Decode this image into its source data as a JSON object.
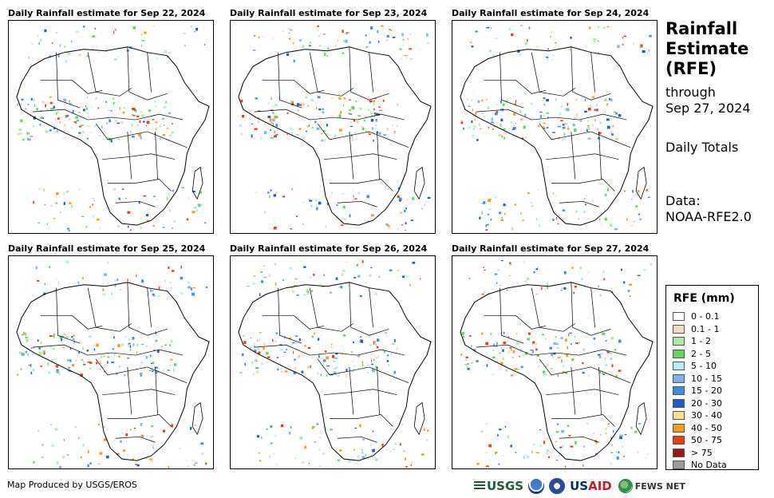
{
  "panels": [
    {
      "title": "Daily Rainfall estimate for Sep 22, 2024"
    },
    {
      "title": "Daily Rainfall estimate for Sep 23, 2024"
    },
    {
      "title": "Daily Rainfall estimate for Sep 24, 2024"
    },
    {
      "title": "Daily Rainfall estimate for Sep 25, 2024"
    },
    {
      "title": "Daily Rainfall estimate for Sep 26, 2024"
    },
    {
      "title": "Daily Rainfall estimate for Sep 27, 2024"
    }
  ],
  "side": {
    "title_line1": "Rainfall",
    "title_line2": "Estimate",
    "title_line3": "(RFE)",
    "through_line1": "through",
    "through_line2": "Sep 27, 2024",
    "totals": "Daily Totals",
    "data_line1": "Data:",
    "data_line2": "NOAA-RFE2.0"
  },
  "legend": {
    "title": "RFE (mm)",
    "items": [
      {
        "label": "0 - 0.1",
        "color": "#ffffff"
      },
      {
        "label": "0.1 - 1",
        "color": "#f0dcc0"
      },
      {
        "label": "1 - 2",
        "color": "#a8ec9c"
      },
      {
        "label": "2 - 5",
        "color": "#5fd85a"
      },
      {
        "label": "5 - 10",
        "color": "#b4ecf8"
      },
      {
        "label": "10 - 15",
        "color": "#7ab4f0"
      },
      {
        "label": "15 - 20",
        "color": "#3c8ce8"
      },
      {
        "label": "20 - 30",
        "color": "#1c5cd0"
      },
      {
        "label": "30 - 40",
        "color": "#f8e08c"
      },
      {
        "label": "40 - 50",
        "color": "#f89c14"
      },
      {
        "label": "50 - 75",
        "color": "#f03c0c"
      },
      {
        "label": "> 75",
        "color": "#a01414"
      },
      {
        "label": "No Data",
        "color": "#9a9a9a"
      }
    ]
  },
  "footer": {
    "credit": "Map Produced by USGS/EROS",
    "logo_usgs": "USGS",
    "logo_usaid_a": "US",
    "logo_usaid_b": "AID",
    "logo_fews": "FEWS NET"
  }
}
